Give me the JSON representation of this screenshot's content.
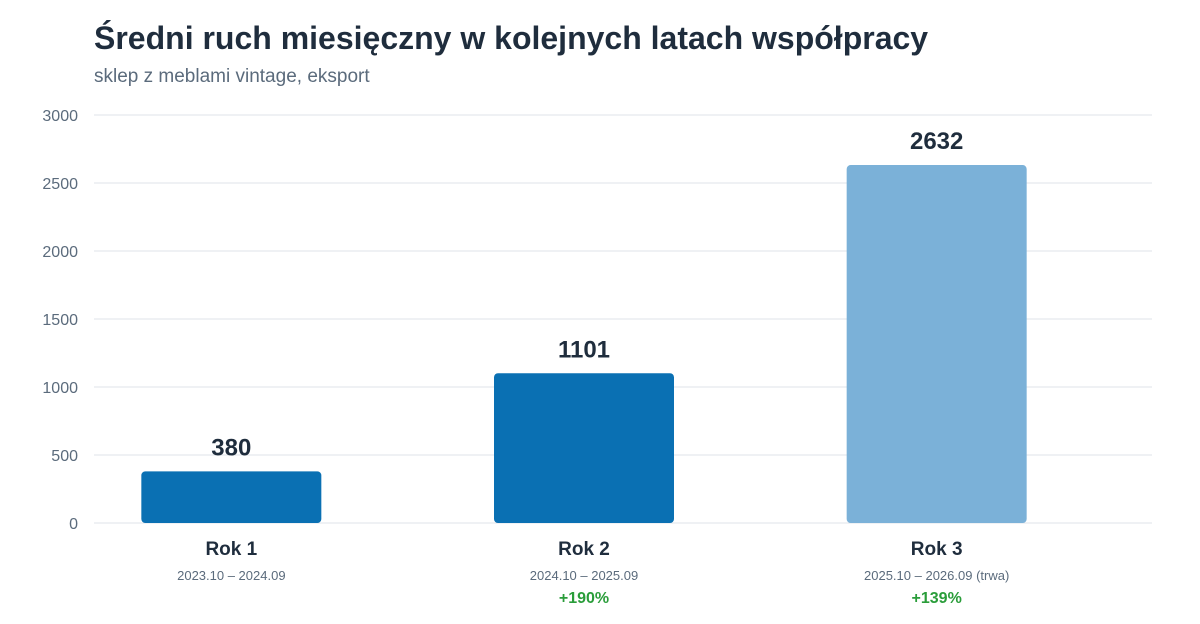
{
  "chart_data": {
    "type": "bar",
    "title": "Średni ruch miesięczny w kolejnych latach współpracy",
    "subtitle": "sklep z meblami vintage, eksport",
    "categories": [
      "Rok 1",
      "Rok 2",
      "Rok 3"
    ],
    "periods": [
      "2023.10 – 2024.09",
      "2024.10 – 2025.09",
      "2025.10 – 2026.09 (trwa)"
    ],
    "values": [
      380,
      1101,
      2632
    ],
    "value_labels": [
      "380",
      "1101",
      "2632"
    ],
    "growth": [
      "",
      "+190%",
      "+139%"
    ],
    "ylim": [
      0,
      3000
    ],
    "yticks": [
      0,
      500,
      1000,
      1500,
      2000,
      2500,
      3000
    ],
    "grid": true,
    "colors": {
      "bar": "#0a70b3",
      "bar_in_progress": "#7bb1d8",
      "grid": "#dfe3e8",
      "axis_text": "#5b6b7c",
      "label_text": "#1f2d3d",
      "growth": "#2a9d3a"
    },
    "in_progress": [
      false,
      false,
      true
    ]
  }
}
